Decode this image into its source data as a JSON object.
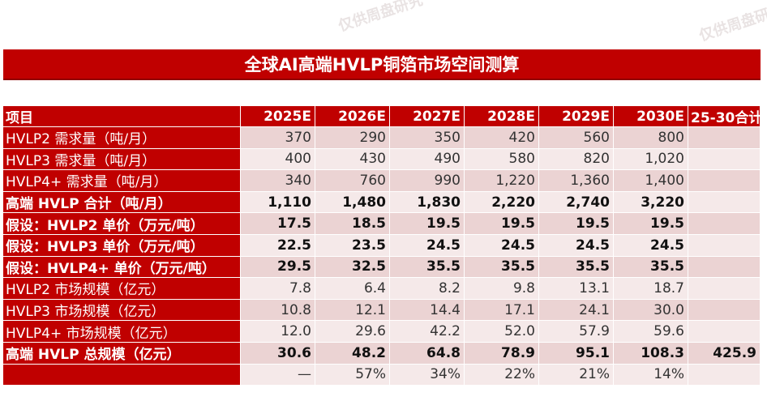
{
  "watermark": "仅供周盘研究",
  "title": "全球AI高端HVLP铜箔市场空间测算",
  "columns": [
    "项目",
    "2025E",
    "2026E",
    "2027E",
    "2028E",
    "2029E",
    "2030E",
    "25-30合计"
  ],
  "rows": [
    {
      "label": "HVLP2 需求量（吨/月）",
      "bold": false,
      "values": [
        "370",
        "290",
        "350",
        "420",
        "560",
        "800",
        ""
      ]
    },
    {
      "label": "HVLP3 需求量（吨/月）",
      "bold": false,
      "values": [
        "400",
        "430",
        "490",
        "580",
        "820",
        "1,020",
        ""
      ]
    },
    {
      "label": "HVLP4+ 需求量（吨/月）",
      "bold": false,
      "values": [
        "340",
        "760",
        "990",
        "1,220",
        "1,360",
        "1,400",
        ""
      ]
    },
    {
      "label": "高端 HVLP 合计（吨/月）",
      "bold": true,
      "values": [
        "1,110",
        "1,480",
        "1,830",
        "2,220",
        "2,740",
        "3,220",
        ""
      ]
    },
    {
      "label": "假设：HVLP2 单价（万元/吨）",
      "bold": true,
      "values": [
        "17.5",
        "18.5",
        "19.5",
        "19.5",
        "19.5",
        "19.5",
        ""
      ]
    },
    {
      "label": "假设：HVLP3 单价（万元/吨）",
      "bold": true,
      "values": [
        "22.5",
        "23.5",
        "24.5",
        "24.5",
        "24.5",
        "24.5",
        ""
      ]
    },
    {
      "label": "假设：HVLP4+ 单价（万元/吨）",
      "bold": true,
      "values": [
        "29.5",
        "32.5",
        "35.5",
        "35.5",
        "35.5",
        "35.5",
        ""
      ]
    },
    {
      "label": "HVLP2 市场规模（亿元）",
      "bold": false,
      "values": [
        "7.8",
        "6.4",
        "8.2",
        "9.8",
        "13.1",
        "18.7",
        ""
      ]
    },
    {
      "label": "HVLP3 市场规模（亿元）",
      "bold": false,
      "values": [
        "10.8",
        "12.1",
        "14.4",
        "17.1",
        "24.1",
        "30.0",
        ""
      ]
    },
    {
      "label": "HVLP4+ 市场规模（亿元）",
      "bold": false,
      "values": [
        "12.0",
        "29.6",
        "42.2",
        "52.0",
        "57.9",
        "59.6",
        ""
      ]
    },
    {
      "label": "高端 HVLP 总规模（亿元）",
      "bold": true,
      "values": [
        "30.6",
        "48.2",
        "64.8",
        "78.9",
        "95.1",
        "108.3",
        "425.9"
      ]
    },
    {
      "label": "",
      "bold": false,
      "values": [
        "—",
        "57%",
        "34%",
        "22%",
        "21%",
        "14%",
        ""
      ]
    }
  ]
}
